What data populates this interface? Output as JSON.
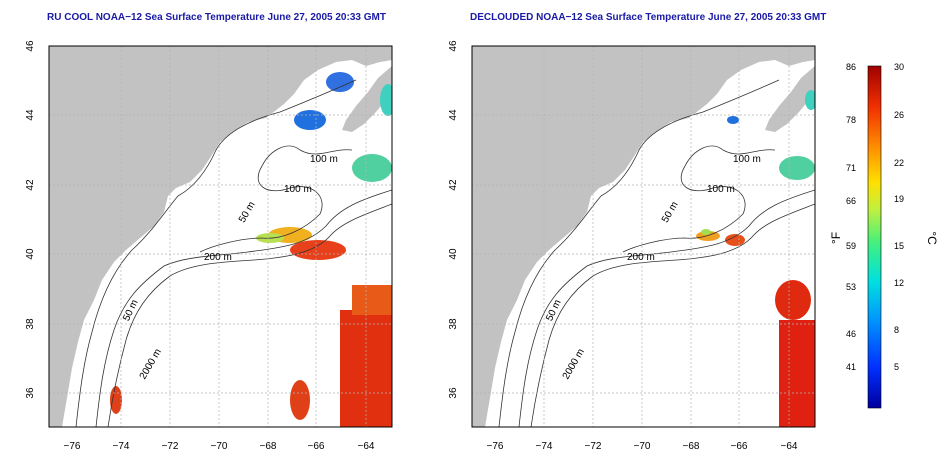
{
  "left_map": {
    "title": "RU COOL NOAA−12 Sea Surface Temperature June 27, 2005 20:33 GMT",
    "contour_labels": [
      "100 m",
      "100 m",
      "50 m",
      "200 m",
      "50 m",
      "2000 m"
    ]
  },
  "right_map": {
    "title": "DECLOUDED NOAA−12 Sea Surface Temperature June 27, 2005 20:33 GMT",
    "contour_labels": [
      "100 m",
      "100 m",
      "50 m",
      "200 m",
      "50 m",
      "2000 m"
    ]
  },
  "lat_ticks": [
    "46",
    "44",
    "42",
    "40",
    "38",
    "36"
  ],
  "lon_ticks": [
    "−76",
    "−74",
    "−72",
    "−70",
    "−68",
    "−66",
    "−64"
  ],
  "colorbar": {
    "f_ticks": [
      "86",
      "78",
      "71",
      "66",
      "59",
      "53",
      "46",
      "41"
    ],
    "c_ticks": [
      "30",
      "26",
      "22",
      "19",
      "15",
      "12",
      "8",
      "5"
    ],
    "f_label": "°F",
    "c_label": "°C"
  },
  "colors": {
    "title": "#1a1aa6",
    "land": "#c2c2c2",
    "warm": "#e03010",
    "grid": "#b4b4b4"
  }
}
